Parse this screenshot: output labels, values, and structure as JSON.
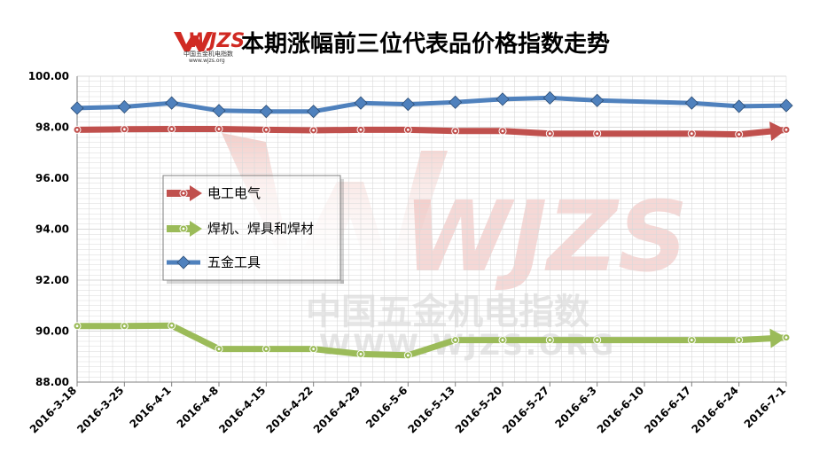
{
  "title": "本期涨幅前三位代表品价格指数走势",
  "logo": {
    "mark": "WJZS",
    "subtitle": "中国五金机电指数",
    "url": "www.wjzs.org"
  },
  "watermark": {
    "mark": "WJZS",
    "line1": "中国五金机电指数",
    "line2": "WWW.WJZS.ORG"
  },
  "colors": {
    "red": "#c0504d",
    "green": "#9bbb59",
    "blue": "#4f81bd",
    "grid": "#d9d9d9",
    "logo_red": "#d02a23"
  },
  "chart_data": {
    "type": "line",
    "categories": [
      "2016-3-18",
      "2016-3-25",
      "2016-4-1",
      "2016-4-8",
      "2016-4-15",
      "2016-4-22",
      "2016-4-29",
      "2016-5-6",
      "2016-5-13",
      "2016-5-20",
      "2016-5-27",
      "2016-6-3",
      "2016-6-10",
      "2016-6-17",
      "2016-6-24",
      "2016-7-1"
    ],
    "ylim": [
      88,
      100
    ],
    "yticks": [
      "88.00",
      "90.00",
      "92.00",
      "94.00",
      "96.00",
      "98.00",
      "100.00"
    ],
    "legend_position": "left-middle",
    "series": [
      {
        "name": "电工电气",
        "color": "#c0504d",
        "marker": "circle-arrow",
        "points": [
          [
            0,
            97.9
          ],
          [
            1,
            97.92
          ],
          [
            2,
            97.93
          ],
          [
            3,
            97.93
          ],
          [
            4,
            97.9
          ],
          [
            5,
            97.88
          ],
          [
            6,
            97.9
          ],
          [
            7,
            97.9
          ],
          [
            8,
            97.85
          ],
          [
            9,
            97.85
          ],
          [
            10,
            97.75
          ],
          [
            11,
            97.75
          ],
          [
            13,
            97.75
          ],
          [
            14,
            97.72
          ],
          [
            15,
            97.9
          ]
        ]
      },
      {
        "name": "焊机、焊具和焊材",
        "color": "#9bbb59",
        "marker": "circle-arrow",
        "points": [
          [
            0,
            90.2
          ],
          [
            1,
            90.2
          ],
          [
            2,
            90.22
          ],
          [
            3,
            89.3
          ],
          [
            4,
            89.3
          ],
          [
            5,
            89.3
          ],
          [
            6,
            89.1
          ],
          [
            7,
            89.05
          ],
          [
            8,
            89.65
          ],
          [
            9,
            89.65
          ],
          [
            10,
            89.65
          ],
          [
            11,
            89.65
          ],
          [
            13,
            89.65
          ],
          [
            14,
            89.65
          ],
          [
            15,
            89.75
          ]
        ]
      },
      {
        "name": "五金工具",
        "color": "#4f81bd",
        "marker": "diamond",
        "points": [
          [
            0,
            98.75
          ],
          [
            1,
            98.8
          ],
          [
            2,
            98.95
          ],
          [
            3,
            98.65
          ],
          [
            4,
            98.62
          ],
          [
            5,
            98.62
          ],
          [
            6,
            98.95
          ],
          [
            7,
            98.9
          ],
          [
            8,
            98.98
          ],
          [
            9,
            99.1
          ],
          [
            10,
            99.15
          ],
          [
            11,
            99.05
          ],
          [
            13,
            98.95
          ],
          [
            14,
            98.82
          ],
          [
            15,
            98.85
          ]
        ]
      }
    ]
  }
}
